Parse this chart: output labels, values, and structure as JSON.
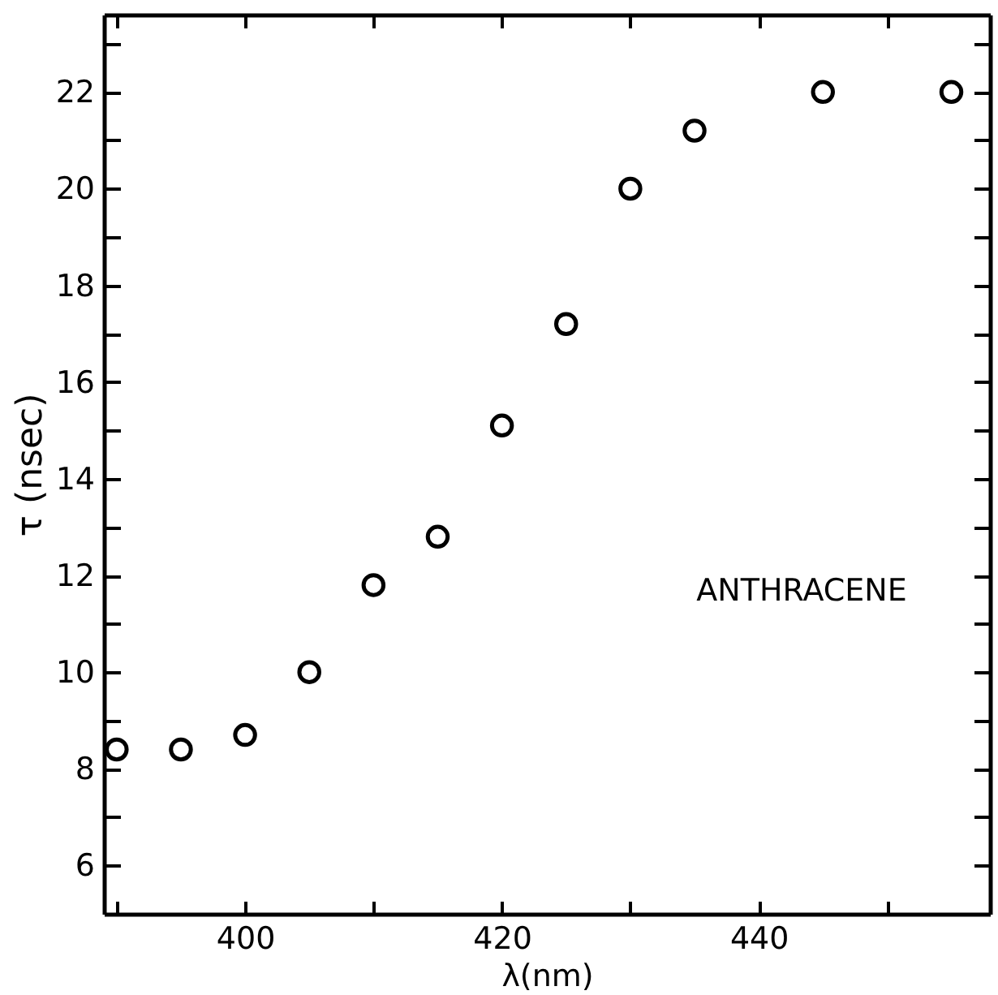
{
  "chart_data": {
    "type": "scatter",
    "xlabel": "λ(nm)",
    "ylabel": "τ (nsec)",
    "annotations": [
      "ANTHRACENE"
    ],
    "x": [
      390,
      395,
      400,
      405,
      410,
      415,
      420,
      425,
      430,
      435,
      445,
      455
    ],
    "series": [
      {
        "color": "#000000",
        "values": [
          8.4,
          8.4,
          8.7,
          10.0,
          11.8,
          12.8,
          15.1,
          17.2,
          20.0,
          21.2,
          22.0,
          22.0
        ]
      }
    ],
    "xlim": [
      389,
      458
    ],
    "xticks": [
      {
        "value": 390,
        "label": null
      },
      400,
      {
        "value": 410,
        "label": null
      },
      420,
      {
        "value": 430,
        "label": null
      },
      440,
      {
        "value": 450,
        "label": null
      }
    ],
    "ylim": [
      5,
      23.6
    ],
    "yticks": [
      6,
      {
        "value": 7,
        "label": null
      },
      8,
      {
        "value": 9,
        "label": null
      },
      10,
      {
        "value": 11,
        "label": null
      },
      12,
      {
        "value": 13,
        "label": null
      },
      14,
      {
        "value": 15,
        "label": null
      },
      16,
      {
        "value": 17,
        "label": null
      },
      18,
      {
        "value": 19,
        "label": null
      },
      20,
      {
        "value": 21,
        "label": null
      },
      22,
      {
        "value": 23,
        "label": null
      }
    ],
    "marker": "circle",
    "grid": false
  }
}
